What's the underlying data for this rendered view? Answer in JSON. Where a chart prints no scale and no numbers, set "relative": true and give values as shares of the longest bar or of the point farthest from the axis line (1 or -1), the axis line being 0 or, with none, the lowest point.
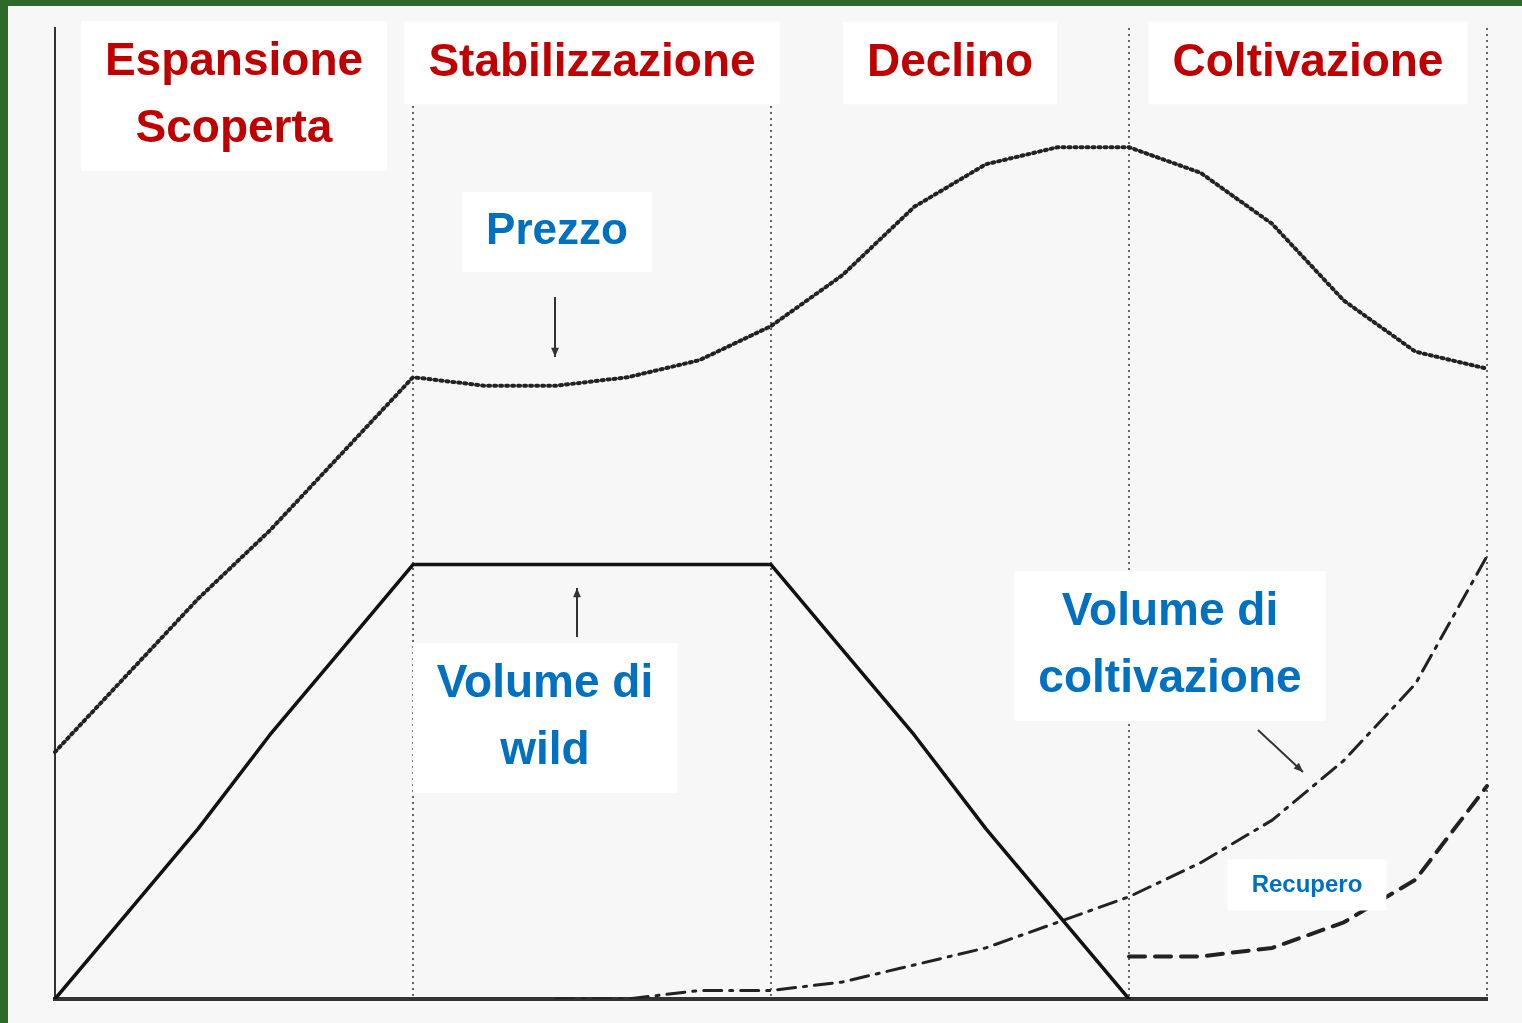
{
  "chart_data": {
    "type": "line",
    "relative": true,
    "legend": false,
    "categories": [
      null,
      null,
      null,
      null,
      null,
      null,
      null,
      null,
      null,
      null,
      null,
      null,
      null,
      null,
      null,
      null,
      null,
      null,
      null,
      null,
      null
    ],
    "series": [
      {
        "name": "Prezzo",
        "color": "#222222",
        "line_style": "dotted",
        "values": [
          0.29,
          0.38,
          0.47,
          0.55,
          0.64,
          0.73,
          0.72,
          0.72,
          0.73,
          0.75,
          0.79,
          0.85,
          0.93,
          0.98,
          1.0,
          1.0,
          0.97,
          0.91,
          0.82,
          0.76,
          0.74
        ]
      },
      {
        "name": "Volume di wild",
        "color": "#111111",
        "line_style": "solid",
        "values": [
          0,
          0.1,
          0.2,
          0.31,
          0.41,
          0.51,
          0.51,
          0.51,
          0.51,
          0.51,
          0.51,
          0.41,
          0.31,
          0.2,
          0.1,
          0,
          null,
          null,
          null,
          null,
          null
        ]
      },
      {
        "name": "Volume di coltivazione",
        "color": "#222222",
        "line_style": "dashdot",
        "values": [
          null,
          null,
          null,
          null,
          null,
          null,
          null,
          0,
          0,
          0.01,
          0.01,
          0.02,
          0.04,
          0.06,
          0.09,
          0.12,
          0.16,
          0.21,
          0.28,
          0.37,
          0.52
        ]
      },
      {
        "name": "Recupero",
        "color": "#222222",
        "line_style": "dashed",
        "values": [
          null,
          null,
          null,
          null,
          null,
          null,
          null,
          null,
          null,
          null,
          null,
          null,
          null,
          null,
          null,
          0.05,
          0.05,
          0.06,
          0.09,
          0.14,
          0.25
        ]
      }
    ],
    "grid": "x",
    "annotations": [
      "Espansione Scoperta",
      "Stabilizzazione",
      "Declino",
      "Coltivazione"
    ]
  }
}
